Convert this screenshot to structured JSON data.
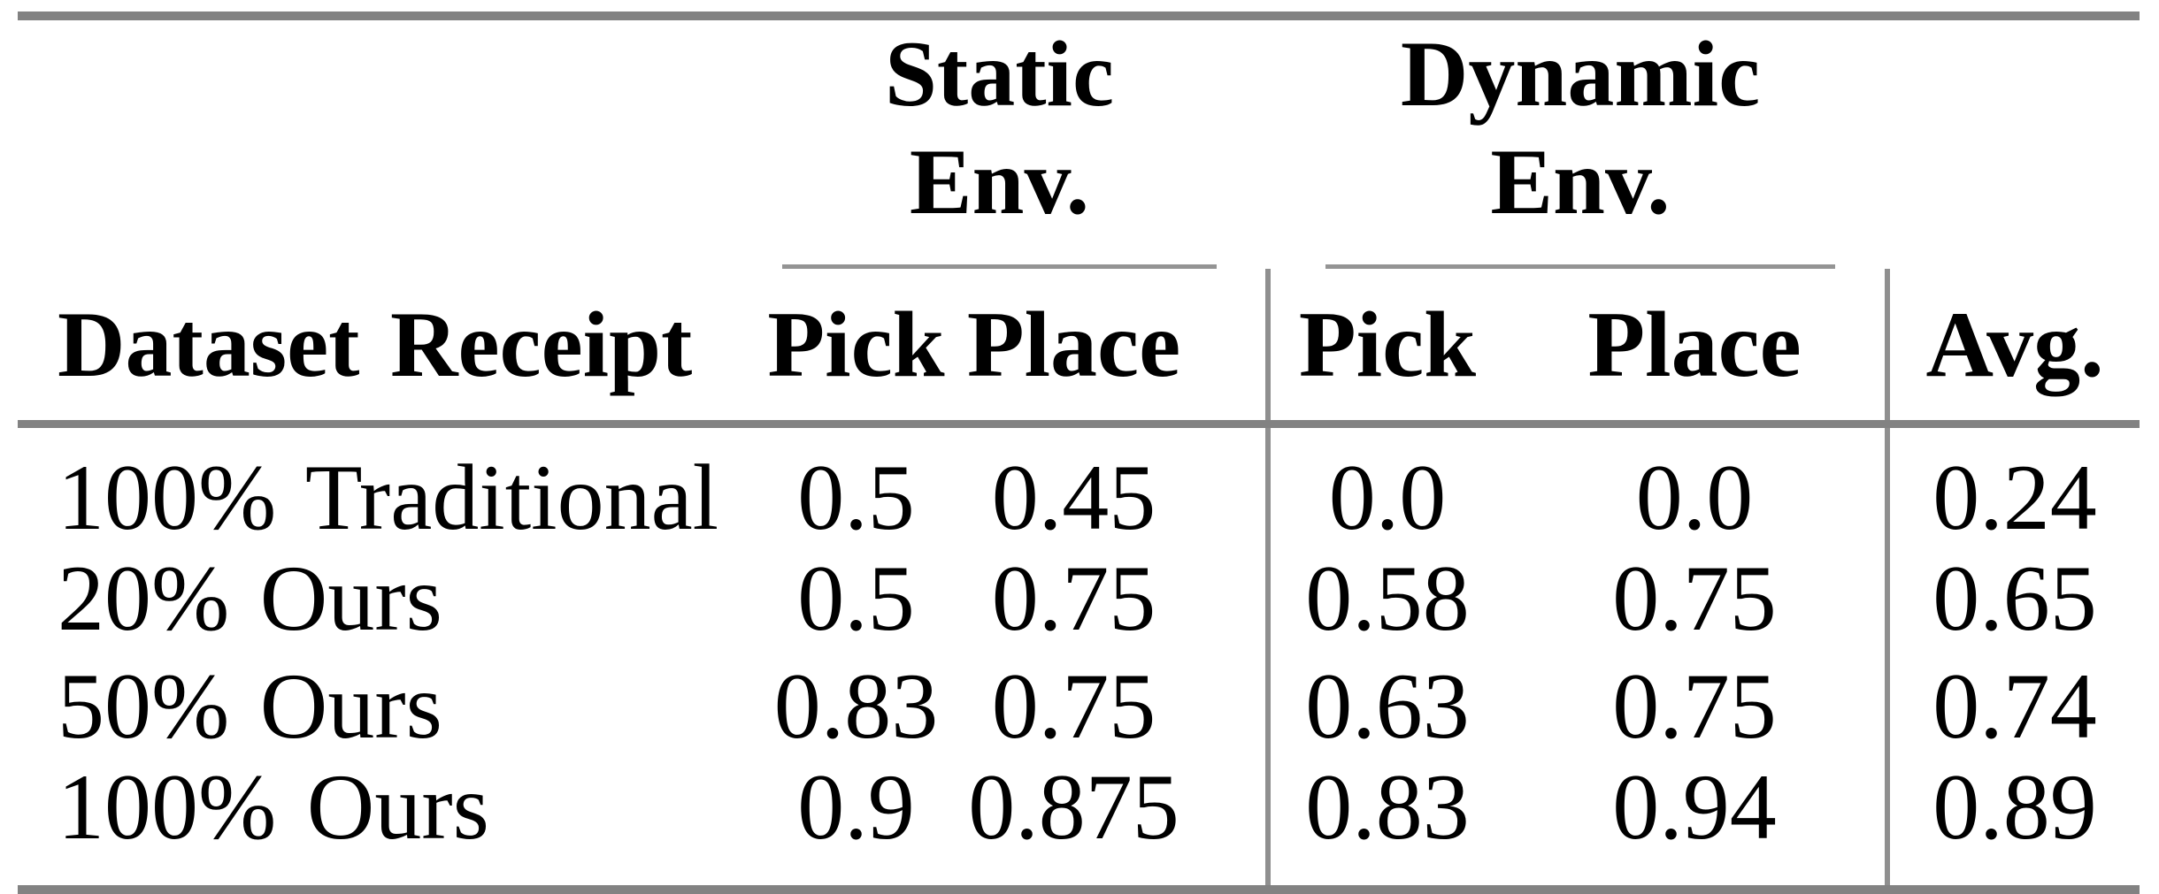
{
  "colors": {
    "rule_heavy": "#828282",
    "rule_light": "#949494",
    "vertical_rule": "#8f8f8f",
    "text": "#000000",
    "background": "#ffffff"
  },
  "table": {
    "group_headers": [
      {
        "label": "Static Env."
      },
      {
        "label": "Dynamic Env."
      }
    ],
    "column_headers": {
      "dataset": "Dataset Receipt",
      "static_pick": "Pick",
      "static_place": "Place",
      "dynamic_pick": "Pick",
      "dynamic_place": "Place",
      "avg": "Avg."
    },
    "rows": [
      {
        "dataset": "100% Traditional",
        "static_pick": "0.5",
        "static_place": "0.45",
        "dynamic_pick": "0.0",
        "dynamic_place": "0.0",
        "avg": "0.24"
      },
      {
        "dataset": "20% Ours",
        "static_pick": "0.5",
        "static_place": "0.75",
        "dynamic_pick": "0.58",
        "dynamic_place": "0.75",
        "avg": "0.65"
      },
      {
        "dataset": "50% Ours",
        "static_pick": "0.83",
        "static_place": "0.75",
        "dynamic_pick": "0.63",
        "dynamic_place": "0.75",
        "avg": "0.74"
      },
      {
        "dataset": "100% Ours",
        "static_pick": "0.9",
        "static_place": "0.875",
        "dynamic_pick": "0.83",
        "dynamic_place": "0.94",
        "avg": "0.89"
      }
    ]
  },
  "chart_data": {
    "type": "table",
    "columns": [
      "Dataset Receipt",
      "Static Env. Pick",
      "Static Env. Place",
      "Dynamic Env. Pick",
      "Dynamic Env. Place",
      "Avg."
    ],
    "rows": [
      [
        "100% Traditional",
        0.5,
        0.45,
        0.0,
        0.0,
        0.24
      ],
      [
        "20% Ours",
        0.5,
        0.75,
        0.58,
        0.75,
        0.65
      ],
      [
        "50% Ours",
        0.83,
        0.75,
        0.63,
        0.75,
        0.74
      ],
      [
        "100% Ours",
        0.9,
        0.875,
        0.83,
        0.94,
        0.89
      ]
    ]
  }
}
